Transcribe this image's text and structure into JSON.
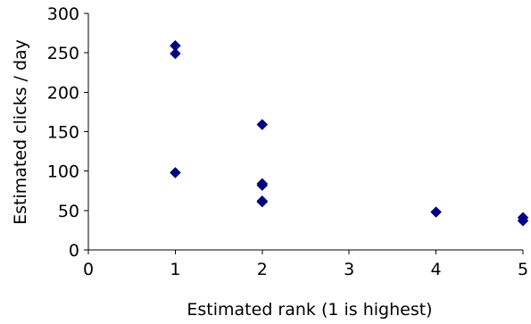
{
  "chart_data": {
    "type": "scatter",
    "title": "",
    "xlabel": "Estimated rank (1 is highest)",
    "ylabel": "Estimated clicks / day",
    "xlim": [
      0,
      5
    ],
    "ylim": [
      0,
      300
    ],
    "xticks": [
      0,
      1,
      2,
      3,
      4,
      5
    ],
    "yticks": [
      0,
      50,
      100,
      150,
      200,
      250,
      300
    ],
    "grid": false,
    "legend": "none",
    "marker": "diamond",
    "marker_color": "#000080",
    "series": [
      {
        "points": [
          {
            "x": 1,
            "y": 259
          },
          {
            "x": 1,
            "y": 249
          },
          {
            "x": 1,
            "y": 98
          },
          {
            "x": 2,
            "y": 159
          },
          {
            "x": 2,
            "y": 84
          },
          {
            "x": 2,
            "y": 82
          },
          {
            "x": 2,
            "y": 62
          },
          {
            "x": 2,
            "y": 61
          },
          {
            "x": 4,
            "y": 48
          },
          {
            "x": 5,
            "y": 41
          },
          {
            "x": 5,
            "y": 37
          }
        ]
      }
    ]
  }
}
